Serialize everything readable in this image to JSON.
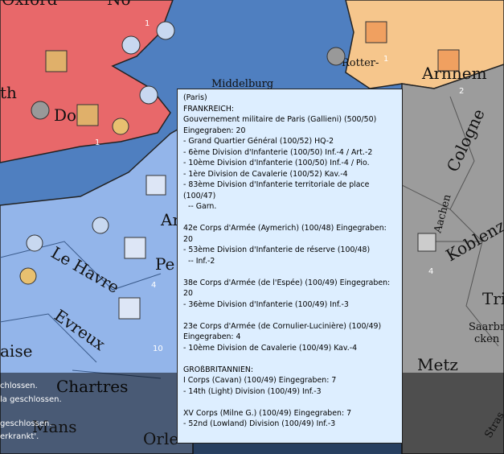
{
  "map_labels": {
    "oxford": "Oxford",
    "norwich": "No",
    "north": "th",
    "dover": "Do",
    "middelburg": "Middelburg",
    "rotterdam": "Rotter-",
    "arnhem": "Arnhem",
    "cologne": "Cologne",
    "aachen": "Aachen",
    "koblenz": "Koblenz",
    "trier": "Tri",
    "saarbruecken_1": "Saarbru-",
    "saarbruecken_2": "cken",
    "metz": "Metz",
    "chartres": "Chartres",
    "le_havre": "Le Havre",
    "evreux": "Evreux",
    "le_mans": "Mans",
    "orleans": "Orle",
    "oise": "aise",
    "amiens": "Ar",
    "peronne": "Pe",
    "strasbourg": "Stras"
  },
  "unit_counts": [
    1,
    1,
    2,
    1,
    4,
    10,
    4
  ],
  "message_log": [
    "chlossen.",
    "la geschlossen.",
    "geschlossen.",
    "erkrankt'."
  ],
  "tooltip": {
    "blocks": [
      [
        "(Paris)",
        "FRANKREICH:",
        "Gouvernement militaire de Paris (Gallieni) (500/50)",
        "Eingegraben: 20",
        "- Grand Quartier Général (100/52) HQ-2",
        "- 6ème Division d'Infanterie (100/50) Inf.-4 / Art.-2",
        "- 10ème Division d'Infanterie (100/50) Inf.-4 / Pio.",
        "- 1ère Division de Cavalerie (100/52) Kav.-4",
        "- 83ème Division d'Infanterie territoriale de place",
        "(100/47)",
        "  -- Garn."
      ],
      [
        "42e Corps d'Armée (Aymerich) (100/48) Eingegraben:",
        "20",
        "- 53ème Division d'Infanterie de réserve (100/48)",
        "  -- Inf.-2"
      ],
      [
        "38e Corps d'Armée (de l'Espée) (100/49) Eingegraben:",
        "20",
        "- 36ème Division d'Infanterie (100/49) Inf.-3"
      ],
      [
        "23e Corps d'Armée (de Cornulier-Lucinière) (100/49)",
        "Eingegraben: 4",
        "- 10ème Division de Cavalerie (100/49) Kav.-4"
      ],
      [
        "GROßBRITANNIEN:",
        "I Corps (Cavan) (100/49) Eingegraben: 7",
        "- 14th (Light) Division (100/49) Inf.-3"
      ],
      [
        "XV Corps (Milne G.) (100/49) Eingegraben: 7",
        "- 52nd (Lowland) Division (100/49) Inf.-3"
      ]
    ]
  }
}
